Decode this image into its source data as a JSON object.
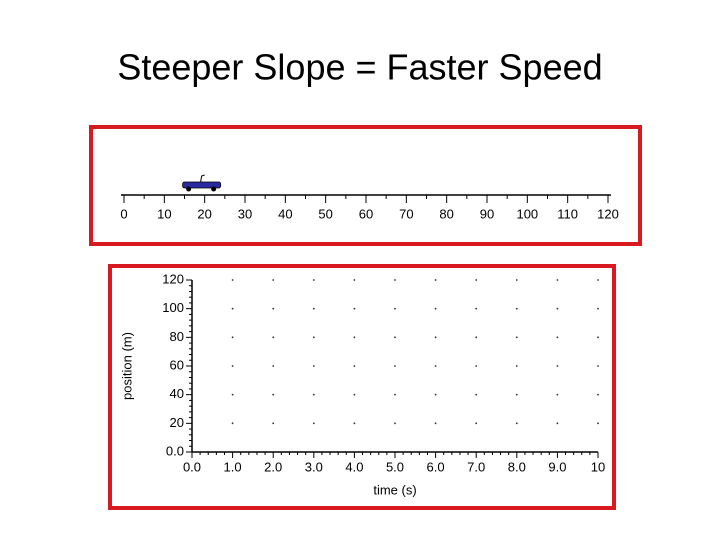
{
  "title": "Steeper Slope = Faster Speed",
  "chart_data": [
    {
      "type": "number-line",
      "xlim": [
        0,
        120
      ],
      "xticks": [
        0,
        10,
        20,
        30,
        40,
        50,
        60,
        70,
        80,
        90,
        100,
        110,
        120
      ],
      "marker": 19,
      "color": "#2a2aa0",
      "frame_color": "#d71920"
    },
    {
      "type": "scatter",
      "xlabel": "time (s)",
      "ylabel": "position (m)",
      "xlim": [
        0,
        10
      ],
      "ylim": [
        0,
        120
      ],
      "xticks": [
        {
          "value": 0,
          "label": "0.0"
        },
        {
          "value": 1,
          "label": "1.0"
        },
        {
          "value": 2,
          "label": "2.0"
        },
        {
          "value": 3,
          "label": "3.0"
        },
        {
          "value": 4,
          "label": "4.0"
        },
        {
          "value": 5,
          "label": "5.0"
        },
        {
          "value": 6,
          "label": "6.0"
        },
        {
          "value": 7,
          "label": "7.0"
        },
        {
          "value": 8,
          "label": "8.0"
        },
        {
          "value": 9,
          "label": "9.0"
        },
        10
      ],
      "yticks": [
        {
          "value": 0,
          "label": "0.0"
        },
        20,
        40,
        60,
        80,
        100,
        120
      ],
      "grid": true,
      "frame_color": "#d71920"
    }
  ]
}
